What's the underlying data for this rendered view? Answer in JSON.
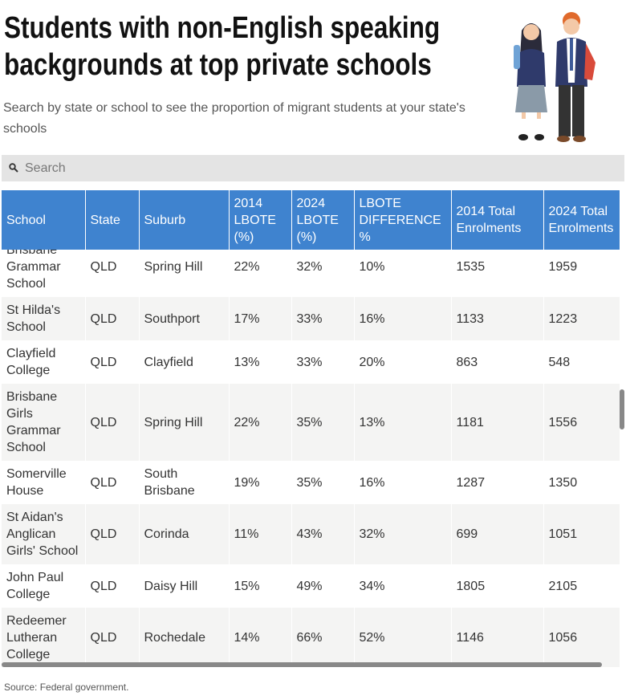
{
  "header": {
    "title": "Students with non-English speaking backgrounds at top private schools",
    "subtitle": "Search by state or school to see the proportion of migrant students at your state's schools"
  },
  "search": {
    "placeholder": "Search"
  },
  "table": {
    "columns": [
      "School",
      "State",
      "Suburb",
      "2014 LBOTE (%)",
      "2024 LBOTE (%)",
      "LBOTE DIFFERENCE %",
      "2014 Total Enrolments",
      "2024 Total Enrolments"
    ],
    "rows": [
      [
        "Brisbane Grammar School",
        "QLD",
        "Spring Hill",
        "22%",
        "32%",
        "10%",
        "1535",
        "1959"
      ],
      [
        "St Hilda's School",
        "QLD",
        "Southport",
        "17%",
        "33%",
        "16%",
        "1133",
        "1223"
      ],
      [
        "Clayfield College",
        "QLD",
        "Clayfield",
        "13%",
        "33%",
        "20%",
        "863",
        "548"
      ],
      [
        "Brisbane Girls Grammar School",
        "QLD",
        "Spring Hill",
        "22%",
        "35%",
        "13%",
        "1181",
        "1556"
      ],
      [
        "Somerville House",
        "QLD",
        "South Brisbane",
        "19%",
        "35%",
        "16%",
        "1287",
        "1350"
      ],
      [
        "St Aidan's Anglican Girls' School",
        "QLD",
        "Corinda",
        "11%",
        "43%",
        "32%",
        "699",
        "1051"
      ],
      [
        "John Paul College",
        "QLD",
        "Daisy Hill",
        "15%",
        "49%",
        "34%",
        "1805",
        "2105"
      ],
      [
        "Redeemer Lutheran College",
        "QLD",
        "Rochedale",
        "14%",
        "66%",
        "52%",
        "1146",
        "1056"
      ]
    ]
  },
  "footer": {
    "source": "Source: Federal government."
  }
}
